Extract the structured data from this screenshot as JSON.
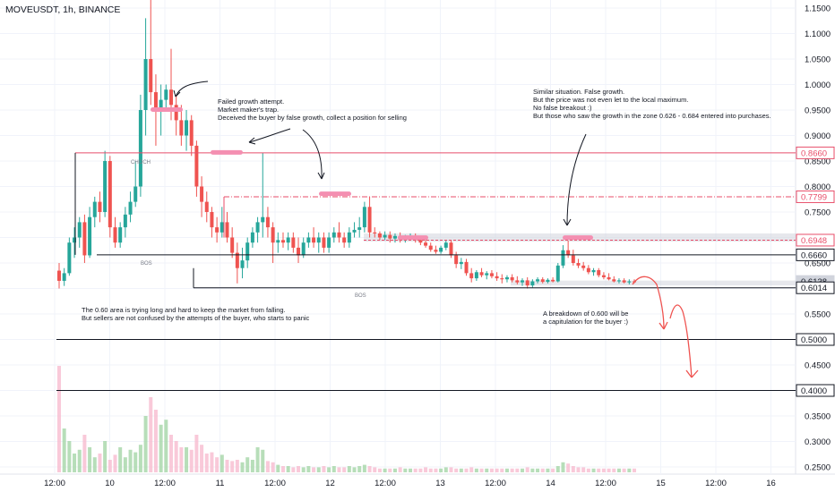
{
  "header": {
    "symbol": "MOVEUSDT, 1h, BINANCE"
  },
  "colors": {
    "up": "#26a69a",
    "down": "#ef5350",
    "level": "#e84e6a",
    "pink": "#f48fb1",
    "grid": "#f0f3fa"
  },
  "chart_data": {
    "type": "candlestick",
    "title": "MOVEUSDT, 1h, BINANCE",
    "y_axis": {
      "ylim": [
        0.23,
        1.17
      ],
      "ticks": [
        "1.1500",
        "1.1000",
        "1.0500",
        "1.0000",
        "0.9500",
        "0.9000",
        "0.8500",
        "0.8000",
        "0.7500",
        "0.7000",
        "0.6500",
        "0.6000",
        "0.5500",
        "0.5000",
        "0.4500",
        "0.4000",
        "0.3500",
        "0.3000",
        "0.2500"
      ]
    },
    "x_axis": {
      "ticks": [
        "12:00",
        "10",
        "12:00",
        "11",
        "12:00",
        "12",
        "12:00",
        "13",
        "12:00",
        "14",
        "12:00",
        "15",
        "12:00",
        "16"
      ]
    },
    "price_labels": [
      {
        "value": 0.866,
        "text": "0.8660",
        "style": "level"
      },
      {
        "value": 0.7799,
        "text": "0.7799",
        "style": "level"
      },
      {
        "value": 0.6948,
        "text": "0.6948",
        "style": "level"
      },
      {
        "value": 0.666,
        "text": "0.6660",
        "style": "plain"
      },
      {
        "value": 0.6138,
        "text": "0.6138",
        "style": "grey"
      },
      {
        "value": 0.6014,
        "text": "0.6014",
        "style": "plain"
      },
      {
        "value": 0.5,
        "text": "0.5000",
        "style": "plain"
      },
      {
        "value": 0.4,
        "text": "0.4000",
        "style": "plain"
      }
    ],
    "structure_labels": [
      "CHOCH",
      "BOS",
      "BOS"
    ],
    "annotations": [
      "Failed growth attempt.",
      "Market maker's trap.",
      "Deceived the buyer by false growth, collect a position for selling",
      "Similar situation. False growth.",
      "But the price was not even let to the local maximum.",
      "No false breakout :)",
      "But those who saw the growth in the zone 0.626 - 0.684 entered into purchases.",
      "The 0.60 area is trying long and hard to keep the market from falling.",
      "But sellers are not confused by the attempts of the buyer, who starts to panic",
      "A breakdown of 0.600 will be",
      "a capitulation for the buyer :)"
    ],
    "candles": [
      [
        0.635,
        0.65,
        0.6,
        0.615
      ],
      [
        0.615,
        0.64,
        0.605,
        0.63
      ],
      [
        0.63,
        0.7,
        0.625,
        0.69
      ],
      [
        0.69,
        0.72,
        0.66,
        0.7
      ],
      [
        0.7,
        0.74,
        0.68,
        0.73
      ],
      [
        0.73,
        0.745,
        0.65,
        0.665
      ],
      [
        0.665,
        0.76,
        0.66,
        0.74
      ],
      [
        0.74,
        0.78,
        0.72,
        0.77
      ],
      [
        0.77,
        0.79,
        0.73,
        0.75
      ],
      [
        0.75,
        0.87,
        0.74,
        0.85
      ],
      [
        0.85,
        0.86,
        0.7,
        0.72
      ],
      [
        0.72,
        0.74,
        0.68,
        0.69
      ],
      [
        0.69,
        0.73,
        0.68,
        0.72
      ],
      [
        0.72,
        0.76,
        0.7,
        0.745
      ],
      [
        0.745,
        0.79,
        0.73,
        0.77
      ],
      [
        0.77,
        0.85,
        0.76,
        0.8
      ],
      [
        0.8,
        0.98,
        0.78,
        0.95
      ],
      [
        0.95,
        1.13,
        0.9,
        1.05
      ],
      [
        1.05,
        1.17,
        0.96,
        0.985
      ],
      [
        0.985,
        1.02,
        0.88,
        0.95
      ],
      [
        0.95,
        1.0,
        0.9,
        0.97
      ],
      [
        0.97,
        1.0,
        0.95,
        0.99
      ],
      [
        0.99,
        1.07,
        0.93,
        0.96
      ],
      [
        0.96,
        0.98,
        0.9,
        0.93
      ],
      [
        0.93,
        0.96,
        0.88,
        0.9
      ],
      [
        0.9,
        0.95,
        0.87,
        0.93
      ],
      [
        0.93,
        0.94,
        0.86,
        0.88
      ],
      [
        0.88,
        0.89,
        0.78,
        0.8
      ],
      [
        0.8,
        0.82,
        0.74,
        0.77
      ],
      [
        0.77,
        0.79,
        0.73,
        0.75
      ],
      [
        0.75,
        0.76,
        0.7,
        0.72
      ],
      [
        0.72,
        0.74,
        0.69,
        0.71
      ],
      [
        0.71,
        0.76,
        0.7,
        0.73
      ],
      [
        0.73,
        0.75,
        0.69,
        0.7
      ],
      [
        0.7,
        0.72,
        0.66,
        0.67
      ],
      [
        0.67,
        0.69,
        0.61,
        0.64
      ],
      [
        0.64,
        0.68,
        0.62,
        0.655
      ],
      [
        0.655,
        0.7,
        0.64,
        0.69
      ],
      [
        0.69,
        0.72,
        0.68,
        0.71
      ],
      [
        0.71,
        0.74,
        0.69,
        0.73
      ],
      [
        0.73,
        0.866,
        0.7,
        0.74
      ],
      [
        0.74,
        0.76,
        0.7,
        0.72
      ],
      [
        0.72,
        0.73,
        0.65,
        0.69
      ],
      [
        0.69,
        0.71,
        0.67,
        0.695
      ],
      [
        0.695,
        0.71,
        0.68,
        0.69
      ],
      [
        0.69,
        0.71,
        0.675,
        0.7
      ],
      [
        0.7,
        0.71,
        0.67,
        0.68
      ],
      [
        0.68,
        0.7,
        0.65,
        0.665
      ],
      [
        0.665,
        0.7,
        0.66,
        0.69
      ],
      [
        0.69,
        0.71,
        0.68,
        0.7
      ],
      [
        0.7,
        0.72,
        0.68,
        0.69
      ],
      [
        0.69,
        0.71,
        0.67,
        0.7
      ],
      [
        0.7,
        0.71,
        0.67,
        0.68
      ],
      [
        0.68,
        0.71,
        0.67,
        0.7
      ],
      [
        0.7,
        0.72,
        0.69,
        0.71
      ],
      [
        0.71,
        0.73,
        0.69,
        0.7
      ],
      [
        0.7,
        0.71,
        0.68,
        0.69
      ],
      [
        0.69,
        0.72,
        0.68,
        0.71
      ],
      [
        0.71,
        0.73,
        0.7,
        0.715
      ],
      [
        0.715,
        0.74,
        0.7,
        0.72
      ],
      [
        0.72,
        0.77,
        0.71,
        0.76
      ],
      [
        0.76,
        0.78,
        0.7,
        0.71
      ],
      [
        0.71,
        0.72,
        0.7,
        0.708
      ],
      [
        0.708,
        0.712,
        0.695,
        0.7
      ],
      [
        0.7,
        0.712,
        0.695,
        0.705
      ],
      [
        0.705,
        0.712,
        0.69,
        0.698
      ],
      [
        0.698,
        0.708,
        0.69,
        0.703
      ],
      [
        0.703,
        0.71,
        0.69,
        0.695
      ],
      [
        0.695,
        0.705,
        0.69,
        0.7
      ],
      [
        0.7,
        0.708,
        0.695,
        0.702
      ],
      [
        0.702,
        0.708,
        0.69,
        0.695
      ],
      [
        0.695,
        0.7,
        0.685,
        0.69
      ],
      [
        0.69,
        0.698,
        0.68,
        0.684
      ],
      [
        0.684,
        0.69,
        0.672,
        0.676
      ],
      [
        0.676,
        0.684,
        0.668,
        0.672
      ],
      [
        0.672,
        0.684,
        0.668,
        0.68
      ],
      [
        0.68,
        0.695,
        0.675,
        0.69
      ],
      [
        0.69,
        0.695,
        0.66,
        0.665
      ],
      [
        0.665,
        0.672,
        0.64,
        0.648
      ],
      [
        0.648,
        0.66,
        0.638,
        0.652
      ],
      [
        0.652,
        0.658,
        0.625,
        0.63
      ],
      [
        0.63,
        0.64,
        0.612,
        0.62
      ],
      [
        0.62,
        0.636,
        0.615,
        0.632
      ],
      [
        0.632,
        0.64,
        0.622,
        0.626
      ],
      [
        0.626,
        0.634,
        0.618,
        0.63
      ],
      [
        0.63,
        0.636,
        0.62,
        0.624
      ],
      [
        0.624,
        0.632,
        0.615,
        0.62
      ],
      [
        0.62,
        0.628,
        0.61,
        0.618
      ],
      [
        0.618,
        0.626,
        0.612,
        0.622
      ],
      [
        0.622,
        0.628,
        0.612,
        0.616
      ],
      [
        0.616,
        0.624,
        0.608,
        0.612
      ],
      [
        0.612,
        0.62,
        0.605,
        0.616
      ],
      [
        0.616,
        0.622,
        0.6,
        0.606
      ],
      [
        0.606,
        0.618,
        0.602,
        0.614
      ],
      [
        0.614,
        0.622,
        0.61,
        0.618
      ],
      [
        0.618,
        0.622,
        0.61,
        0.613
      ],
      [
        0.613,
        0.62,
        0.61,
        0.617
      ],
      [
        0.617,
        0.622,
        0.612,
        0.614
      ],
      [
        0.614,
        0.65,
        0.612,
        0.645
      ],
      [
        0.645,
        0.685,
        0.64,
        0.675
      ],
      [
        0.675,
        0.694,
        0.66,
        0.665
      ],
      [
        0.665,
        0.676,
        0.645,
        0.65
      ],
      [
        0.65,
        0.658,
        0.64,
        0.645
      ],
      [
        0.645,
        0.652,
        0.635,
        0.64
      ],
      [
        0.64,
        0.646,
        0.628,
        0.632
      ],
      [
        0.632,
        0.64,
        0.625,
        0.636
      ],
      [
        0.636,
        0.64,
        0.622,
        0.626
      ],
      [
        0.626,
        0.632,
        0.618,
        0.622
      ],
      [
        0.622,
        0.63,
        0.616,
        0.618
      ],
      [
        0.618,
        0.624,
        0.612,
        0.614
      ],
      [
        0.614,
        0.62,
        0.61,
        0.616
      ],
      [
        0.616,
        0.62,
        0.61,
        0.612
      ],
      [
        0.612,
        0.618,
        0.608,
        0.614
      ],
      [
        0.614,
        0.618,
        0.61,
        0.613
      ]
    ],
    "volume": [
      0.85,
      0.35,
      0.25,
      0.15,
      0.18,
      0.3,
      0.2,
      0.12,
      0.15,
      0.25,
      0.1,
      0.14,
      0.2,
      0.12,
      0.18,
      0.16,
      0.22,
      0.45,
      0.6,
      0.5,
      0.38,
      0.42,
      0.3,
      0.25,
      0.2,
      0.2,
      0.18,
      0.3,
      0.22,
      0.15,
      0.16,
      0.12,
      0.14,
      0.1,
      0.09,
      0.1,
      0.08,
      0.12,
      0.1,
      0.2,
      0.18,
      0.09,
      0.08,
      0.06,
      0.05,
      0.05,
      0.04,
      0.05,
      0.04,
      0.05,
      0.04,
      0.04,
      0.05,
      0.04,
      0.05,
      0.04,
      0.04,
      0.05,
      0.04,
      0.05,
      0.06,
      0.05,
      0.04,
      0.03,
      0.03,
      0.03,
      0.03,
      0.04,
      0.03,
      0.03,
      0.03,
      0.03,
      0.04,
      0.03,
      0.03,
      0.03,
      0.04,
      0.04,
      0.03,
      0.03,
      0.03,
      0.04,
      0.03,
      0.03,
      0.03,
      0.03,
      0.03,
      0.03,
      0.03,
      0.03,
      0.03,
      0.03,
      0.04,
      0.03,
      0.03,
      0.03,
      0.03,
      0.03,
      0.05,
      0.08,
      0.07,
      0.05,
      0.04,
      0.04,
      0.03,
      0.03,
      0.03,
      0.03,
      0.03,
      0.03,
      0.03,
      0.03,
      0.03,
      0.03
    ]
  }
}
